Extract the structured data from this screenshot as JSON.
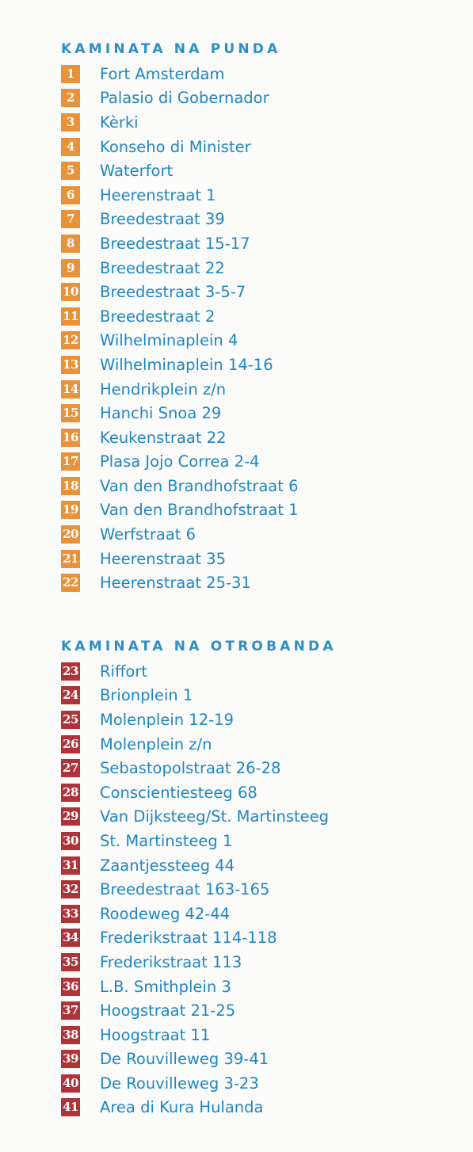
{
  "sections": [
    {
      "heading": "KAMINATA NA PUNDA",
      "badge_color": "#e8923a",
      "items": [
        {
          "num": "1",
          "label": "Fort Amsterdam"
        },
        {
          "num": "2",
          "label": "Palasio di Gobernador"
        },
        {
          "num": "3",
          "label": "Kèrki"
        },
        {
          "num": "4",
          "label": "Konseho di Minister"
        },
        {
          "num": "5",
          "label": "Waterfort"
        },
        {
          "num": "6",
          "label": "Heerenstraat 1"
        },
        {
          "num": "7",
          "label": "Breedestraat 39"
        },
        {
          "num": "8",
          "label": "Breedestraat 15-17"
        },
        {
          "num": "9",
          "label": "Breedestraat 22"
        },
        {
          "num": "10",
          "label": "Breedestraat 3-5-7"
        },
        {
          "num": "11",
          "label": "Breedestraat 2"
        },
        {
          "num": "12",
          "label": "Wilhelminaplein 4"
        },
        {
          "num": "13",
          "label": "Wilhelminaplein 14-16"
        },
        {
          "num": "14",
          "label": "Hendrikplein z/n"
        },
        {
          "num": "15",
          "label": "Hanchi Snoa 29"
        },
        {
          "num": "16",
          "label": "Keukenstraat 22"
        },
        {
          "num": "17",
          "label": "Plasa Jojo Correa 2-4"
        },
        {
          "num": "18",
          "label": "Van den Brandhofstraat 6"
        },
        {
          "num": "19",
          "label": "Van den Brandhofstraat 1"
        },
        {
          "num": "20",
          "label": "Werfstraat 6"
        },
        {
          "num": "21",
          "label": "Heerenstraat 35"
        },
        {
          "num": "22",
          "label": "Heerenstraat 25-31"
        }
      ]
    },
    {
      "heading": "KAMINATA NA OTROBANDA",
      "badge_color": "#b0333a",
      "items": [
        {
          "num": "23",
          "label": "Riffort"
        },
        {
          "num": "24",
          "label": "Brionplein 1"
        },
        {
          "num": "25",
          "label": "Molenplein 12-19"
        },
        {
          "num": "26",
          "label": "Molenplein z/n"
        },
        {
          "num": "27",
          "label": "Sebastopolstraat 26-28"
        },
        {
          "num": "28",
          "label": "Conscientiesteeg 68"
        },
        {
          "num": "29",
          "label": "Van Dijksteeg/St. Martinsteeg"
        },
        {
          "num": "30",
          "label": "St. Martinsteeg 1"
        },
        {
          "num": "31",
          "label": "Zaantjessteeg 44"
        },
        {
          "num": "32",
          "label": "Breedestraat 163-165"
        },
        {
          "num": "33",
          "label": "Roodeweg 42-44"
        },
        {
          "num": "34",
          "label": "Frederikstraat 114-118"
        },
        {
          "num": "35",
          "label": "Frederikstraat 113"
        },
        {
          "num": "36",
          "label": "L.B. Smithplein 3"
        },
        {
          "num": "37",
          "label": "Hoogstraat 21-25"
        },
        {
          "num": "38",
          "label": "Hoogstraat 11"
        },
        {
          "num": "39",
          "label": "De Rouvilleweg 39-41"
        },
        {
          "num": "40",
          "label": "De Rouvilleweg 3-23"
        },
        {
          "num": "41",
          "label": "Area di Kura Hulanda"
        }
      ]
    }
  ]
}
